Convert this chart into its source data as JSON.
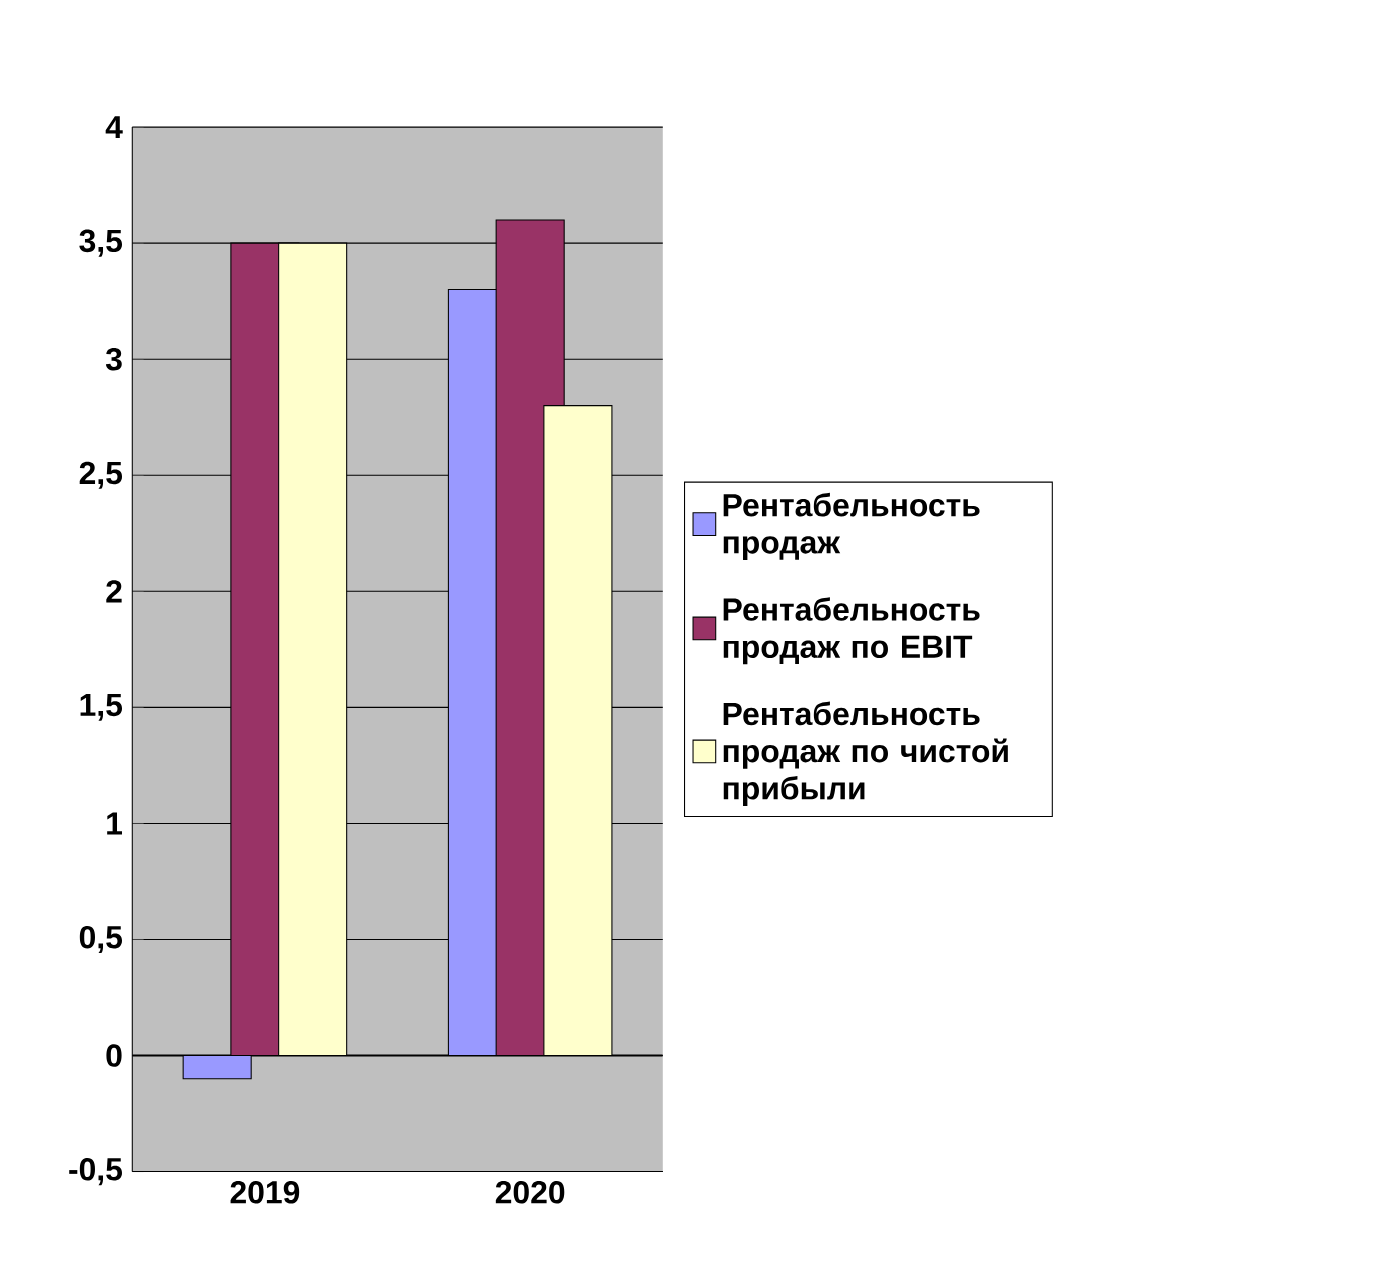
{
  "chart_data": {
    "type": "bar",
    "categories": [
      "2019",
      "2020"
    ],
    "series": [
      {
        "name": "Рентабельность продаж",
        "color": "#9999ff",
        "values": [
          -0.1,
          3.3
        ]
      },
      {
        "name": "Рентабельность продаж по EBIT",
        "color": "#993366",
        "values": [
          3.5,
          3.6
        ]
      },
      {
        "name": "Рентабельность продаж по чистой прибыли",
        "color": "#ffffcc",
        "values": [
          3.5,
          2.8
        ]
      }
    ],
    "ylim": [
      -0.5,
      4
    ],
    "yticks": [
      {
        "value": -0.5,
        "label": "-0,5"
      },
      0,
      {
        "value": 0.5,
        "label": "0,5"
      },
      1,
      {
        "value": 1.5,
        "label": "1,5"
      },
      2,
      {
        "value": 2.5,
        "label": "2,5"
      },
      3,
      {
        "value": 3.5,
        "label": "3,5"
      },
      4
    ],
    "grid": "y",
    "legend": "right"
  }
}
